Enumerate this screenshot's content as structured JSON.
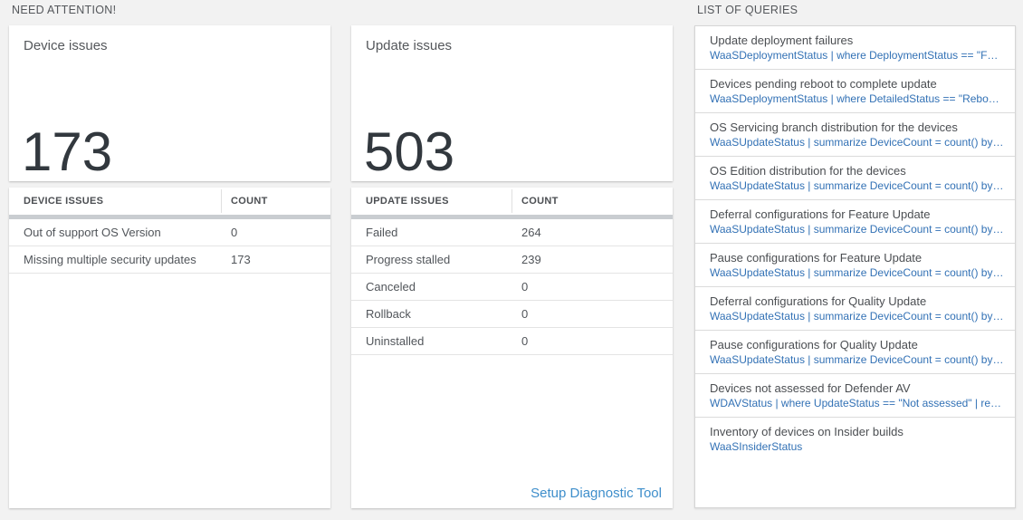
{
  "section_headers": {
    "need_attention": "NEED ATTENTION!",
    "list_of_queries": "LIST OF QUERIES"
  },
  "cards": [
    {
      "title": "Device issues",
      "big_number": "173",
      "table": {
        "columns": [
          "DEVICE ISSUES",
          "COUNT"
        ],
        "rows": [
          {
            "label": "Out of support OS Version",
            "count": "0"
          },
          {
            "label": "Missing multiple security updates",
            "count": "173"
          }
        ]
      }
    },
    {
      "title": "Update issues",
      "big_number": "503",
      "table": {
        "columns": [
          "UPDATE ISSUES",
          "COUNT"
        ],
        "rows": [
          {
            "label": "Failed",
            "count": "264"
          },
          {
            "label": "Progress stalled",
            "count": "239"
          },
          {
            "label": "Canceled",
            "count": "0"
          },
          {
            "label": "Rollback",
            "count": "0"
          },
          {
            "label": "Uninstalled",
            "count": "0"
          }
        ],
        "footer_link": "Setup Diagnostic Tool"
      }
    }
  ],
  "query_list": {
    "items": [
      {
        "title": "Update deployment failures",
        "query": "WaaSDeploymentStatus | where DeploymentStatus == \"Failed\" |..."
      },
      {
        "title": "Devices pending reboot to complete update",
        "query": "WaaSDeploymentStatus | where DetailedStatus == \"Reboot pend..."
      },
      {
        "title": "OS Servicing branch distribution for the devices",
        "query": "WaaSUpdateStatus | summarize DeviceCount = count() by OSSer..."
      },
      {
        "title": "OS Edition distribution for the devices",
        "query": "WaaSUpdateStatus | summarize DeviceCount = count() by OSEdit..."
      },
      {
        "title": "Deferral configurations for Feature Update",
        "query": "WaaSUpdateStatus | summarize DeviceCount = count() by Featur..."
      },
      {
        "title": "Pause configurations for Feature Update",
        "query": "WaaSUpdateStatus | summarize DeviceCount = count() by Featur..."
      },
      {
        "title": "Deferral configurations for Quality Update",
        "query": "WaaSUpdateStatus | summarize DeviceCount = count() by Qualit..."
      },
      {
        "title": "Pause configurations for Quality Update",
        "query": "WaaSUpdateStatus | summarize DeviceCount = count() by Qualit..."
      },
      {
        "title": "Devices not assessed for Defender AV",
        "query": "WDAVStatus | where UpdateStatus == \"Not assessed\" | render ta..."
      },
      {
        "title": "Inventory of devices on Insider builds",
        "query": "WaaSInsiderStatus"
      }
    ]
  },
  "colors": {
    "page_background": "#f2f2f2",
    "tile_background": "#ffffff",
    "section_label": "#54575b",
    "big_number": "#32383e",
    "table_header_bar": "#c9cdd1",
    "query_link_blue": "#3271b5",
    "action_link_blue": "#3e8ecb"
  }
}
